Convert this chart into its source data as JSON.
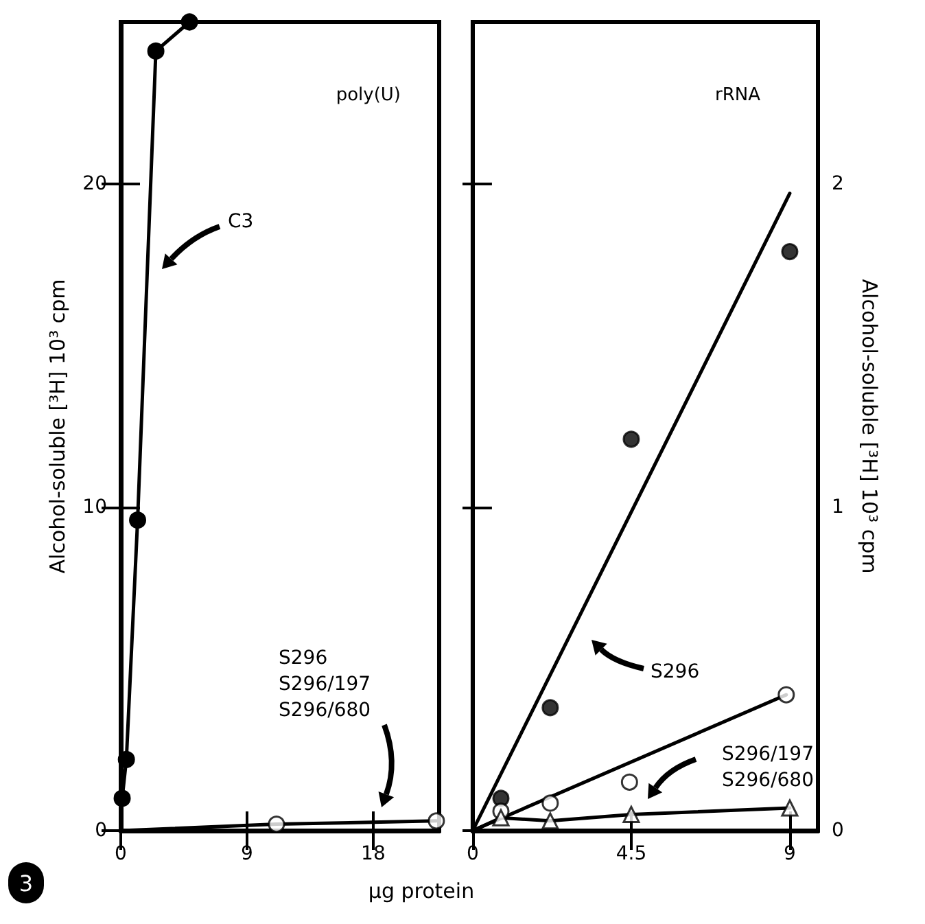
{
  "chart_data": [
    {
      "type": "line",
      "title": "poly(U)",
      "xlabel": "µg protein",
      "ylabel": "Alcohol-soluble [³H] 10³ cpm",
      "xlim": [
        0,
        22.7
      ],
      "xticks": [
        0,
        9,
        18
      ],
      "ylim": [
        0,
        25
      ],
      "yticks": [
        0,
        10,
        20
      ],
      "grid": false,
      "annotations": [
        "C3",
        "S296\nS296/197\nS296/680",
        "3"
      ],
      "series": [
        {
          "color": "#000000",
          "marker": "circle",
          "x": [
            0.1,
            0.4,
            1.2,
            2.5,
            4.9
          ],
          "values": [
            1.0,
            2.2,
            9.6,
            24.1,
            25.0
          ]
        },
        {
          "color": "#000000",
          "marker": "none",
          "x": [
            0,
            11.1,
            22.5
          ],
          "values": [
            0,
            0.2,
            0.3
          ]
        },
        {
          "type": "scatter",
          "color": "#ffffff",
          "marker": "circle",
          "x": [
            11.1,
            22.5
          ],
          "values": [
            0.2,
            0.3
          ]
        }
      ]
    },
    {
      "type": "scatter",
      "title": "rRNA",
      "y2label": "Alcohol-soluble [³H] 10³ cpm",
      "xlim": [
        0,
        9.8
      ],
      "xticks": [
        0,
        4.5,
        9
      ],
      "y2lim": [
        0,
        2.5
      ],
      "y2ticks": [
        0,
        1,
        2
      ],
      "grid": false,
      "annotations": [
        "S296",
        "S296/197\nS296/680"
      ],
      "series": [
        {
          "axis": "y2",
          "color": "#000000",
          "marker": "circle",
          "x": [
            0.8,
            2.2,
            4.5,
            9.0
          ],
          "values": [
            0.1,
            0.38,
            1.21,
            1.79
          ]
        },
        {
          "type": "line",
          "axis": "y2",
          "color": "#000000",
          "marker": "none",
          "x": [
            0,
            9
          ],
          "values": [
            0,
            1.97
          ]
        },
        {
          "axis": "y2",
          "color": "#ffffff",
          "marker": "circle",
          "x": [
            0.8,
            2.2,
            4.45,
            8.9
          ],
          "values": [
            0.06,
            0.085,
            0.15,
            0.42
          ]
        },
        {
          "type": "line",
          "axis": "y2",
          "color": "#000000",
          "marker": "none",
          "x": [
            0,
            8.9
          ],
          "values": [
            0,
            0.42
          ]
        },
        {
          "type": "line",
          "axis": "y2",
          "color": "#000000",
          "marker": "none",
          "x": [
            0,
            0.8,
            2.2,
            4.5,
            9.0
          ],
          "values": [
            0,
            0.04,
            0.03,
            0.05,
            0.07
          ]
        },
        {
          "axis": "y2",
          "color": "#ffffff",
          "marker": "triangle",
          "x": [
            0.8,
            2.2,
            4.5,
            9.0
          ],
          "values": [
            0.04,
            0.03,
            0.05,
            0.07
          ]
        }
      ]
    }
  ]
}
